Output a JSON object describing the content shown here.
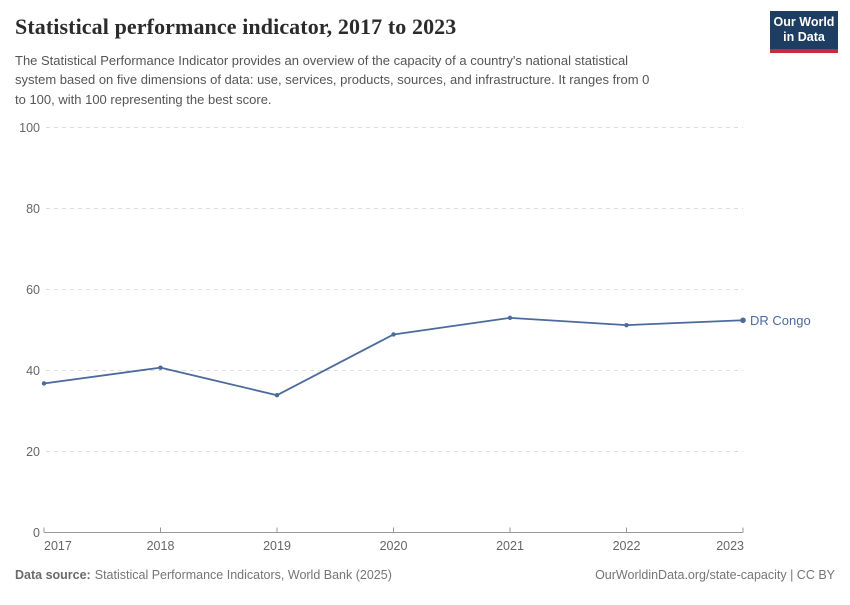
{
  "header": {
    "title": "Statistical performance indicator, 2017 to 2023",
    "subtitle_lines": [
      "The Statistical Performance Indicator provides an overview of the capacity of a country's national statistical",
      "system based on five dimensions of data: use, services, products, sources, and infrastructure. It ranges from 0",
      "to 100, with 100 representing the best score."
    ]
  },
  "logo": {
    "line1": "Our World",
    "line2": "in Data",
    "bg_color": "#1d3d63",
    "bar_color": "#c52b3e"
  },
  "chart_data": {
    "type": "line",
    "title": "Statistical performance indicator, 2017 to 2023",
    "x": [
      2017,
      2018,
      2019,
      2020,
      2021,
      2022,
      2023
    ],
    "series": [
      {
        "name": "DR Congo",
        "color": "#4C6A9C",
        "values": [
          36.8,
          40.7,
          33.9,
          48.9,
          53.0,
          51.2,
          52.4
        ]
      }
    ],
    "xlabel": "",
    "ylabel": "",
    "ylim": [
      0,
      100
    ],
    "yticks": [
      0,
      20,
      40,
      60,
      80,
      100
    ],
    "grid": "horizontal-dashed",
    "legend": "line-end-label",
    "colors": {
      "grid": "#dddddd",
      "axis": "#999999",
      "tick_label": "#666666"
    }
  },
  "footer": {
    "source_label": "Data source:",
    "source_text": "Statistical Performance Indicators, World Bank (2025)",
    "credit": "OurWorldinData.org/state-capacity | CC BY"
  }
}
